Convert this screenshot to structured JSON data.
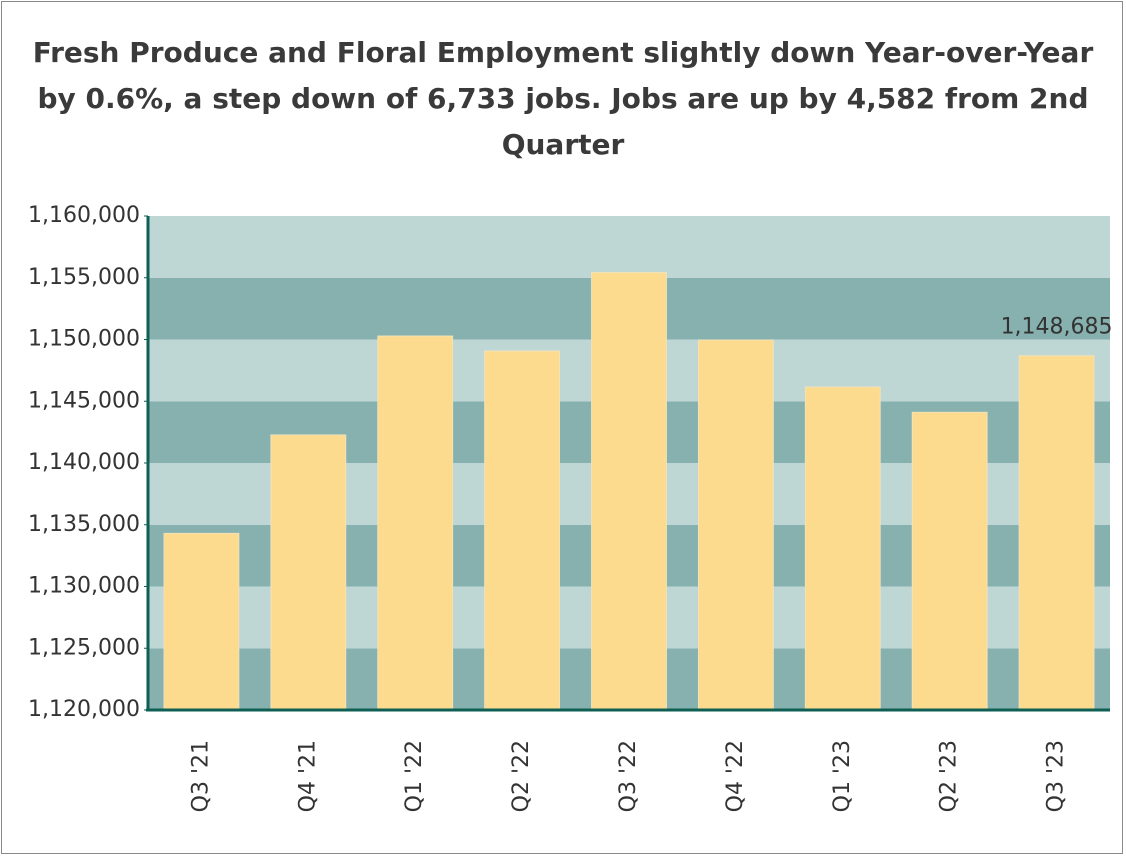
{
  "chart_data": {
    "type": "bar",
    "title": "Fresh Produce and Floral Employment slightly down Year-over-Year by 0.6%, a step down of 6,733 jobs. Jobs are up by 4,582 from 2nd Quarter",
    "categories": [
      "Q3 '21",
      "Q4 '21",
      "Q1 '22",
      "Q2 '22",
      "Q3 '22",
      "Q4 '22",
      "Q1 '23",
      "Q2 '23",
      "Q3 '23"
    ],
    "values": [
      1134300,
      1142270,
      1150280,
      1149070,
      1155418,
      1149960,
      1146150,
      1144103,
      1148685
    ],
    "value_labels": [
      null,
      null,
      null,
      null,
      null,
      null,
      null,
      null,
      "1,148,685"
    ],
    "color": "#fddb8e",
    "ylim": [
      1120000,
      1160000
    ],
    "yticks": [
      {
        "value": 1120000,
        "label": "1,120,000"
      },
      {
        "value": 1125000,
        "label": "1,125,000"
      },
      {
        "value": 1130000,
        "label": "1,130,000"
      },
      {
        "value": 1135000,
        "label": "1,135,000"
      },
      {
        "value": 1140000,
        "label": "1,140,000"
      },
      {
        "value": 1145000,
        "label": "1,145,000"
      },
      {
        "value": 1150000,
        "label": "1,150,000"
      },
      {
        "value": 1155000,
        "label": "1,155,000"
      },
      {
        "value": 1160000,
        "label": "1,160,000"
      }
    ],
    "grid": true
  }
}
